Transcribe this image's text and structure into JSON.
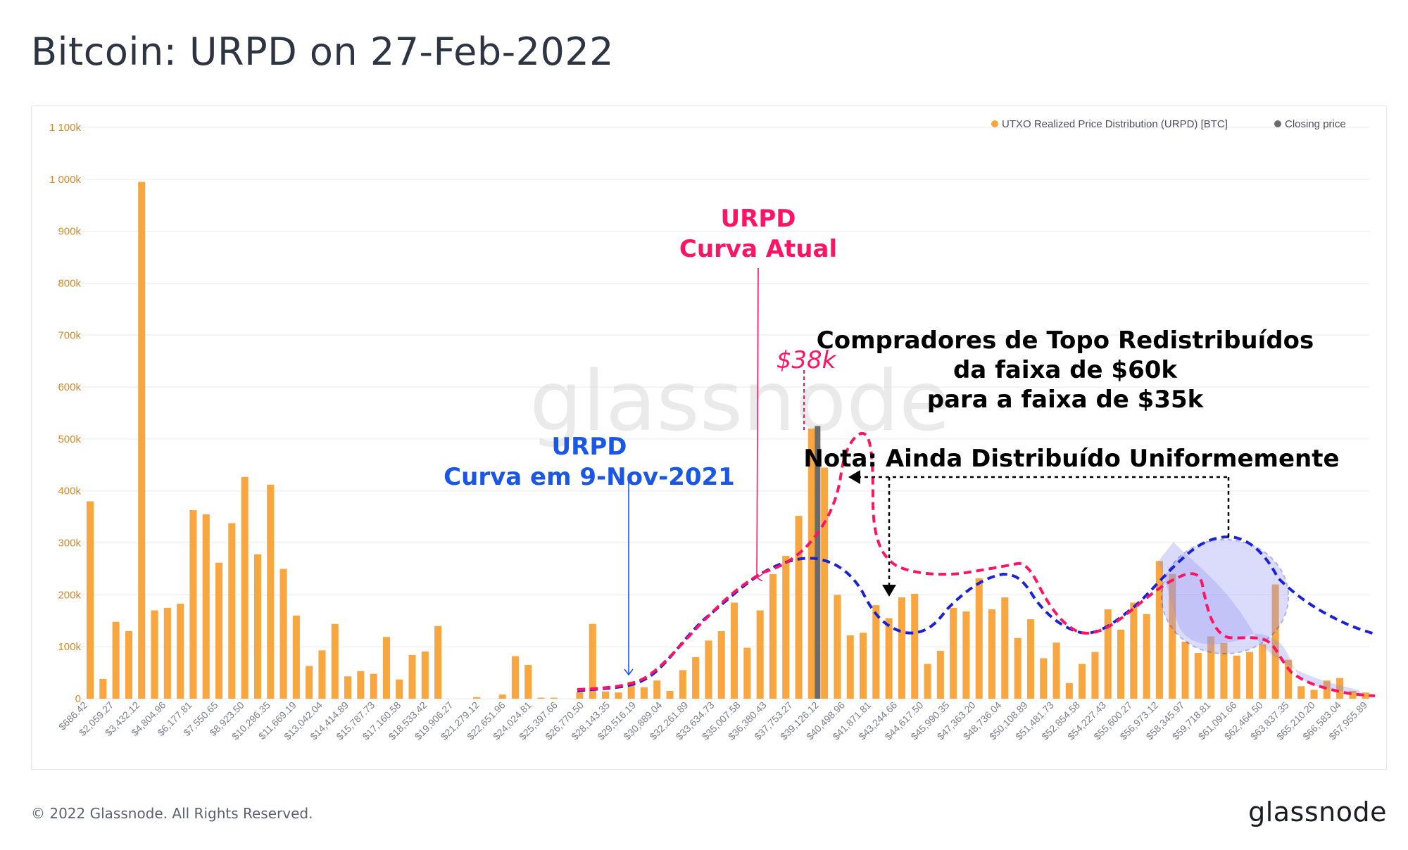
{
  "page": {
    "title": "Bitcoin: URPD on 27-Feb-2022",
    "copyright": "© 2022 Glassnode. All Rights Reserved.",
    "logo": "glassnode",
    "watermark": "glassnode"
  },
  "legend": {
    "urpd": "UTXO Realized Price Distribution (URPD) [BTC]",
    "closing": "Closing price"
  },
  "annotations": {
    "current_title": "URPD",
    "current_sub": "Curva Atual",
    "nov_title": "URPD",
    "nov_sub": "Curva em 9-Nov-2021",
    "price_marker": "$38k",
    "redistrib_line1": "Compradores de Topo Redistribuídos",
    "redistrib_line2": "da faixa de $60k",
    "redistrib_line3": "para a faixa de $35k",
    "note": "Nota: Ainda Distribuído Uniformemente"
  },
  "colors": {
    "bar": "#f7a640",
    "closing": "#6b6b6b",
    "current_curve": "#ff1465",
    "nov_curve": "#1b22d6",
    "nov_title": "#1a56e8",
    "grid": "#eceef1",
    "axis_text": "#d4892a"
  },
  "chart_data": {
    "type": "bar",
    "y_ticks": [
      "0",
      "100k",
      "200k",
      "300k",
      "400k",
      "500k",
      "600k",
      "700k",
      "800k",
      "900k",
      "1 000k",
      "1 100k"
    ],
    "ylim": [
      0,
      1100000
    ],
    "closing_price": 38300,
    "closing_value": 525000,
    "x_labels": [
      "$686.42",
      "$2,059.27",
      "$3,432.12",
      "$4,804.96",
      "$6,177.81",
      "$7,550.65",
      "$8,923.50",
      "$10,296.35",
      "$11,669.19",
      "$13,042.04",
      "$14,414.89",
      "$15,787.73",
      "$17,160.58",
      "$18,533.42",
      "$19,906.27",
      "$21,279.12",
      "$22,651.96",
      "$24,024.81",
      "$25,397.66",
      "$26,770.50",
      "$28,143.35",
      "$29,516.19",
      "$30,889.04",
      "$32,261.89",
      "$33,634.73",
      "$35,007.58",
      "$36,380.43",
      "$37,753.27",
      "$39,126.12",
      "$40,498.96",
      "$41,871.81",
      "$43,244.66",
      "$44,617.50",
      "$45,990.35",
      "$47,363.20",
      "$48,736.04",
      "$50,108.89",
      "$51,481.73",
      "$52,854.58",
      "$54,227.43",
      "$55,600.27",
      "$56,973.12",
      "$58,345.97",
      "$59,718.81",
      "$61,091.66",
      "$62,464.50",
      "$63,837.35",
      "$65,210.20",
      "$66,583.04",
      "$67,955.89"
    ],
    "values": [
      380000,
      38000,
      148000,
      130000,
      995000,
      170000,
      175000,
      183000,
      363000,
      355000,
      262000,
      338000,
      427000,
      278000,
      412000,
      250000,
      160000,
      63000,
      93000,
      144000,
      43000,
      53000,
      48000,
      119000,
      37000,
      84000,
      91000,
      140000,
      0,
      0,
      3000,
      0,
      8000,
      82000,
      65000,
      2000,
      2000,
      0,
      12000,
      144000,
      14000,
      12000,
      33000,
      22000,
      35000,
      15000,
      55000,
      80000,
      112000,
      130000,
      185000,
      98000,
      170000,
      240000,
      275000,
      352000,
      520000,
      445000,
      200000,
      122000,
      127000,
      180000,
      155000,
      195000,
      202000,
      67000,
      92000,
      175000,
      168000,
      232000,
      172000,
      195000,
      117000,
      153000,
      78000,
      108000,
      30000,
      67000,
      90000,
      172000,
      133000,
      185000,
      163000,
      265000,
      240000,
      110000,
      88000,
      120000,
      107000,
      83000,
      90000,
      105000,
      220000,
      75000,
      24000,
      17000,
      35000,
      40000,
      15000,
      12000
    ]
  }
}
